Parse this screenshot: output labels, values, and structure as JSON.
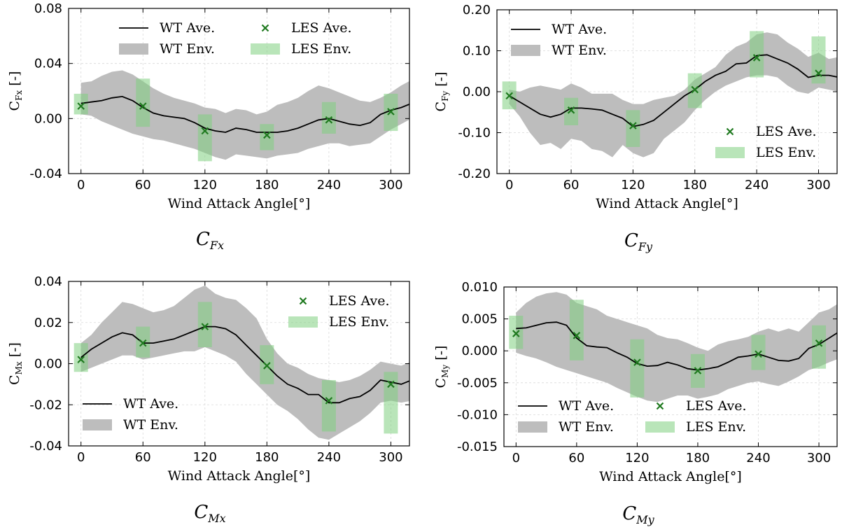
{
  "colors": {
    "wt_line": "#000000",
    "wt_env": "#bdbdbd",
    "les_marker": "#1f7a1f",
    "les_env": "#7fcf7f",
    "grid": "#d9d9d9"
  },
  "chart_data": [
    {
      "type": "line",
      "key": "cfx",
      "ylabel": "C",
      "ylabel_sub": "Fx",
      "ylabel_unit": " [-]",
      "xlabel": "Wind Attack Angle[°]",
      "caption": "C",
      "caption_sub": "Fx",
      "xlim": [
        -12,
        318
      ],
      "ylim": [
        -0.04,
        0.08
      ],
      "xticks": [
        0,
        60,
        120,
        180,
        240,
        300
      ],
      "yticks": [
        -0.04,
        0.0,
        0.04,
        0.08
      ],
      "ytick_labels": [
        "-0.04",
        "0.00",
        "0.04",
        "0.08"
      ],
      "legend": {
        "placement": "top",
        "cols": 2,
        "entries": [
          "WT Ave.",
          "LES Ave.",
          "WT Env.",
          "LES Env."
        ]
      },
      "wt_ave": {
        "name": "WT Ave.",
        "x": [
          0,
          10,
          20,
          30,
          40,
          50,
          60,
          70,
          80,
          90,
          100,
          110,
          120,
          130,
          140,
          150,
          160,
          170,
          180,
          190,
          200,
          210,
          220,
          230,
          240,
          250,
          260,
          270,
          280,
          290,
          300,
          310,
          320
        ],
        "y": [
          0.011,
          0.012,
          0.013,
          0.015,
          0.016,
          0.013,
          0.008,
          0.004,
          0.002,
          0.001,
          0.0,
          -0.003,
          -0.007,
          -0.009,
          -0.01,
          -0.007,
          -0.008,
          -0.01,
          -0.01,
          -0.01,
          -0.009,
          -0.007,
          -0.004,
          -0.001,
          0.0,
          -0.002,
          -0.004,
          -0.005,
          -0.003,
          0.003,
          0.006,
          0.008,
          0.011
        ]
      },
      "wt_env": {
        "name": "WT Env.",
        "upper": [
          0.026,
          0.027,
          0.031,
          0.034,
          0.035,
          0.032,
          0.027,
          0.022,
          0.018,
          0.015,
          0.013,
          0.011,
          0.008,
          0.007,
          0.004,
          0.007,
          0.006,
          0.003,
          0.005,
          0.01,
          0.012,
          0.015,
          0.02,
          0.024,
          0.022,
          0.019,
          0.016,
          0.013,
          0.012,
          0.015,
          0.019,
          0.024,
          0.028
        ],
        "lower": [
          0.003,
          0.002,
          -0.002,
          -0.005,
          -0.008,
          -0.011,
          -0.013,
          -0.015,
          -0.016,
          -0.018,
          -0.02,
          -0.022,
          -0.025,
          -0.028,
          -0.03,
          -0.026,
          -0.027,
          -0.028,
          -0.029,
          -0.027,
          -0.026,
          -0.025,
          -0.022,
          -0.02,
          -0.018,
          -0.018,
          -0.02,
          -0.019,
          -0.018,
          -0.013,
          -0.008,
          -0.004,
          0.0
        ]
      },
      "les_ave": {
        "name": "LES Ave.",
        "x": [
          0,
          60,
          120,
          180,
          240,
          300
        ],
        "y": [
          0.009,
          0.009,
          -0.009,
          -0.012,
          -0.001,
          0.005
        ]
      },
      "les_env": {
        "name": "LES Env.",
        "x": [
          0,
          60,
          120,
          180,
          240,
          300
        ],
        "upper": [
          0.018,
          0.029,
          0.003,
          -0.004,
          0.012,
          0.018
        ],
        "lower": [
          0.003,
          -0.006,
          -0.031,
          -0.023,
          -0.011,
          -0.009
        ]
      }
    },
    {
      "type": "line",
      "key": "cfy",
      "ylabel": "C",
      "ylabel_sub": "Fy",
      "ylabel_unit": " [-]",
      "xlabel": "Wind Attack Angle[°]",
      "caption": "C",
      "caption_sub": "Fy",
      "xlim": [
        -12,
        318
      ],
      "ylim": [
        -0.2,
        0.2
      ],
      "xticks": [
        0,
        60,
        120,
        180,
        240,
        300
      ],
      "yticks": [
        -0.2,
        -0.1,
        0.0,
        0.1,
        0.2
      ],
      "ytick_labels": [
        "-0.20",
        "-0.10",
        "0.00",
        "0.10",
        "0.20"
      ],
      "legend": {
        "placement": "split",
        "cols": 1,
        "entries": [
          "WT Ave.",
          "WT Env.",
          "LES Ave.",
          "LES Env."
        ]
      },
      "wt_ave": {
        "name": "WT Ave.",
        "x": [
          0,
          10,
          20,
          30,
          40,
          50,
          60,
          70,
          80,
          90,
          100,
          110,
          120,
          130,
          140,
          150,
          160,
          170,
          180,
          190,
          200,
          210,
          220,
          230,
          240,
          250,
          260,
          270,
          280,
          290,
          300,
          310,
          320
        ],
        "y": [
          -0.01,
          -0.025,
          -0.04,
          -0.055,
          -0.062,
          -0.055,
          -0.04,
          -0.04,
          -0.042,
          -0.045,
          -0.055,
          -0.065,
          -0.085,
          -0.08,
          -0.07,
          -0.05,
          -0.03,
          -0.01,
          0.005,
          0.025,
          0.04,
          0.05,
          0.068,
          0.07,
          0.088,
          0.09,
          0.08,
          0.07,
          0.055,
          0.035,
          0.04,
          0.04,
          0.035
        ]
      },
      "wt_env": {
        "name": "WT Env.",
        "upper": [
          0.005,
          0.0,
          0.01,
          0.015,
          0.01,
          0.005,
          0.02,
          0.01,
          -0.005,
          -0.005,
          -0.005,
          -0.02,
          -0.03,
          -0.03,
          -0.02,
          -0.015,
          -0.01,
          0.005,
          0.03,
          0.045,
          0.06,
          0.09,
          0.11,
          0.12,
          0.14,
          0.145,
          0.14,
          0.12,
          0.105,
          0.085,
          0.095,
          0.08,
          0.085
        ],
        "lower": [
          -0.03,
          -0.06,
          -0.1,
          -0.13,
          -0.125,
          -0.14,
          -0.115,
          -0.12,
          -0.14,
          -0.145,
          -0.16,
          -0.13,
          -0.15,
          -0.16,
          -0.15,
          -0.115,
          -0.095,
          -0.075,
          -0.045,
          -0.02,
          0.0,
          0.015,
          0.025,
          0.035,
          0.04,
          0.04,
          0.035,
          0.015,
          0.0,
          -0.005,
          0.01,
          0.005,
          0.0
        ]
      },
      "les_ave": {
        "name": "LES Ave.",
        "x": [
          0,
          60,
          120,
          180,
          240,
          300
        ],
        "y": [
          -0.01,
          -0.045,
          -0.083,
          0.005,
          0.083,
          0.045
        ]
      },
      "les_env": {
        "name": "LES Env.",
        "x": [
          0,
          60,
          120,
          180,
          240,
          300
        ],
        "upper": [
          0.025,
          -0.015,
          -0.045,
          0.045,
          0.148,
          0.135
        ],
        "lower": [
          -0.043,
          -0.082,
          -0.135,
          -0.04,
          0.035,
          0.02
        ]
      }
    },
    {
      "type": "line",
      "key": "cmx",
      "ylabel": "C",
      "ylabel_sub": "Mx",
      "ylabel_unit": " [-]",
      "xlabel": "Wind Attack Angle[°]",
      "caption": "C",
      "caption_sub": "Mx",
      "xlim": [
        -12,
        318
      ],
      "ylim": [
        -0.04,
        0.04
      ],
      "xticks": [
        0,
        60,
        120,
        180,
        240,
        300
      ],
      "yticks": [
        -0.04,
        -0.02,
        0.0,
        0.02,
        0.04
      ],
      "ytick_labels": [
        "-0.04",
        "-0.02",
        "0.00",
        "0.02",
        "0.04"
      ],
      "legend": {
        "placement": "split",
        "cols": 1,
        "entries": [
          "LES Ave.",
          "LES Env.",
          "WT Ave.",
          "WT Env."
        ]
      },
      "wt_ave": {
        "name": "WT Ave.",
        "x": [
          0,
          10,
          20,
          30,
          40,
          50,
          60,
          70,
          80,
          90,
          100,
          110,
          120,
          130,
          140,
          150,
          160,
          170,
          180,
          190,
          200,
          210,
          220,
          230,
          240,
          250,
          260,
          270,
          280,
          290,
          300,
          310,
          320
        ],
        "y": [
          0.003,
          0.007,
          0.01,
          0.013,
          0.015,
          0.014,
          0.01,
          0.01,
          0.011,
          0.012,
          0.014,
          0.016,
          0.018,
          0.018,
          0.017,
          0.014,
          0.009,
          0.004,
          -0.001,
          -0.006,
          -0.01,
          -0.012,
          -0.015,
          -0.015,
          -0.019,
          -0.019,
          -0.017,
          -0.016,
          -0.013,
          -0.008,
          -0.009,
          -0.01,
          -0.008
        ]
      },
      "wt_env": {
        "name": "WT Env.",
        "upper": [
          0.01,
          0.014,
          0.02,
          0.025,
          0.03,
          0.029,
          0.027,
          0.025,
          0.026,
          0.028,
          0.032,
          0.036,
          0.038,
          0.034,
          0.032,
          0.031,
          0.027,
          0.022,
          0.012,
          0.005,
          0.0,
          -0.002,
          -0.005,
          -0.007,
          -0.008,
          -0.009,
          -0.008,
          -0.006,
          -0.003,
          0.001,
          0.0,
          -0.001,
          0.001
        ],
        "lower": [
          -0.004,
          -0.002,
          0.0,
          0.002,
          0.004,
          0.004,
          0.002,
          0.003,
          0.004,
          0.005,
          0.006,
          0.006,
          0.008,
          0.006,
          0.004,
          0.001,
          -0.005,
          -0.01,
          -0.015,
          -0.02,
          -0.023,
          -0.027,
          -0.032,
          -0.036,
          -0.037,
          -0.034,
          -0.031,
          -0.028,
          -0.024,
          -0.019,
          -0.018,
          -0.019,
          -0.018
        ]
      },
      "les_ave": {
        "name": "LES Ave.",
        "x": [
          0,
          60,
          120,
          180,
          240,
          300
        ],
        "y": [
          0.002,
          0.01,
          0.018,
          -0.001,
          -0.018,
          -0.01
        ]
      },
      "les_env": {
        "name": "LES Env.",
        "x": [
          0,
          60,
          120,
          180,
          240,
          300
        ],
        "upper": [
          0.01,
          0.018,
          0.03,
          0.009,
          -0.008,
          -0.004
        ],
        "lower": [
          -0.004,
          0.003,
          0.008,
          -0.01,
          -0.033,
          -0.034
        ]
      }
    },
    {
      "type": "line",
      "key": "cmy",
      "ylabel": "C",
      "ylabel_sub": "My",
      "ylabel_unit": " [-]",
      "xlabel": "Wind Attack Angle[°]",
      "caption": "C",
      "caption_sub": "My",
      "xlim": [
        -12,
        318
      ],
      "ylim": [
        -0.015,
        0.01
      ],
      "xticks": [
        0,
        60,
        120,
        180,
        240,
        300
      ],
      "yticks": [
        -0.015,
        -0.01,
        -0.005,
        0.0,
        0.005,
        0.01
      ],
      "ytick_labels": [
        "-0.015",
        "-0.010",
        "-0.005",
        "0.000",
        "0.005",
        "0.010"
      ],
      "legend": {
        "placement": "bottom",
        "cols": 2,
        "entries": [
          "WT Ave.",
          "LES Ave.",
          "WT Env.",
          "LES Env."
        ]
      },
      "wt_ave": {
        "name": "WT Ave.",
        "x": [
          0,
          10,
          20,
          30,
          40,
          50,
          60,
          70,
          80,
          90,
          100,
          110,
          120,
          130,
          140,
          150,
          160,
          170,
          180,
          190,
          200,
          210,
          220,
          230,
          240,
          250,
          260,
          270,
          280,
          290,
          300,
          310,
          320
        ],
        "y": [
          0.0035,
          0.0036,
          0.004,
          0.0044,
          0.0045,
          0.004,
          0.002,
          0.0008,
          0.0006,
          0.0005,
          -0.0003,
          -0.001,
          -0.002,
          -0.0024,
          -0.0023,
          -0.0018,
          -0.0022,
          -0.0028,
          -0.003,
          -0.0028,
          -0.0025,
          -0.0018,
          -0.001,
          -0.0008,
          -0.0005,
          -0.001,
          -0.0015,
          -0.0016,
          -0.0012,
          0.0004,
          0.001,
          0.002,
          0.003
        ]
      },
      "wt_env": {
        "name": "WT Env.",
        "upper": [
          0.006,
          0.0075,
          0.0085,
          0.009,
          0.0092,
          0.0088,
          0.0075,
          0.007,
          0.0065,
          0.0055,
          0.005,
          0.0045,
          0.004,
          0.0035,
          0.0025,
          0.002,
          0.0018,
          0.0012,
          0.0005,
          0.0,
          0.001,
          0.0015,
          0.0018,
          0.0022,
          0.003,
          0.0035,
          0.003,
          0.0035,
          0.003,
          0.0045,
          0.006,
          0.0065,
          0.0075
        ],
        "lower": [
          -0.0003,
          -0.0008,
          -0.0012,
          -0.0018,
          -0.0025,
          -0.003,
          -0.0035,
          -0.004,
          -0.0045,
          -0.005,
          -0.0058,
          -0.0065,
          -0.0072,
          -0.0078,
          -0.008,
          -0.0075,
          -0.007,
          -0.007,
          -0.0075,
          -0.0072,
          -0.0068,
          -0.006,
          -0.0055,
          -0.005,
          -0.0048,
          -0.0052,
          -0.0055,
          -0.0048,
          -0.004,
          -0.003,
          -0.0025,
          -0.0018,
          -0.0012
        ]
      },
      "les_ave": {
        "name": "LES Ave.",
        "x": [
          0,
          60,
          120,
          180,
          240,
          300
        ],
        "y": [
          0.0027,
          0.0024,
          -0.0018,
          -0.0031,
          -0.0005,
          0.0012
        ]
      },
      "les_env": {
        "name": "LES Env.",
        "x": [
          0,
          60,
          120,
          180,
          240,
          300
        ],
        "upper": [
          0.0055,
          0.008,
          0.0018,
          -0.0005,
          0.0025,
          0.004
        ],
        "lower": [
          0.0003,
          -0.0015,
          -0.0073,
          -0.0058,
          -0.003,
          -0.0028
        ]
      }
    }
  ]
}
